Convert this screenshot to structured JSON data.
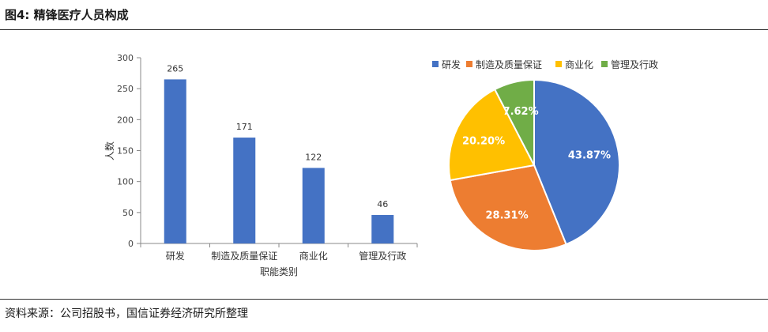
{
  "figure": {
    "title": "图4: 精锋医疗人员构成",
    "source": "资料来源：公司招股书，国信证券经济研究所整理"
  },
  "chart_data": [
    {
      "type": "bar",
      "categories": [
        "研发",
        "制造及质量保证",
        "商业化",
        "管理及行政"
      ],
      "values": [
        265,
        171,
        122,
        46
      ],
      "data_labels": [
        "265",
        "171",
        "122",
        "46"
      ],
      "xlabel": "职能类别",
      "ylabel": "人数",
      "ylim": [
        0,
        300
      ],
      "yticks": [
        0,
        50,
        100,
        150,
        200,
        250,
        300
      ],
      "grid": false,
      "color": "#4472C4"
    },
    {
      "type": "pie",
      "labels": [
        "研发",
        "制造及质量保证",
        "商业化",
        "管理及行政"
      ],
      "values": [
        43.87,
        28.31,
        20.2,
        7.62
      ],
      "data_labels": [
        "43.87%",
        "28.31%",
        "20.20%",
        "7.62%"
      ],
      "colors": [
        "#4472C4",
        "#ED7D31",
        "#FFC000",
        "#70AD47"
      ],
      "legend_position": "top"
    }
  ]
}
